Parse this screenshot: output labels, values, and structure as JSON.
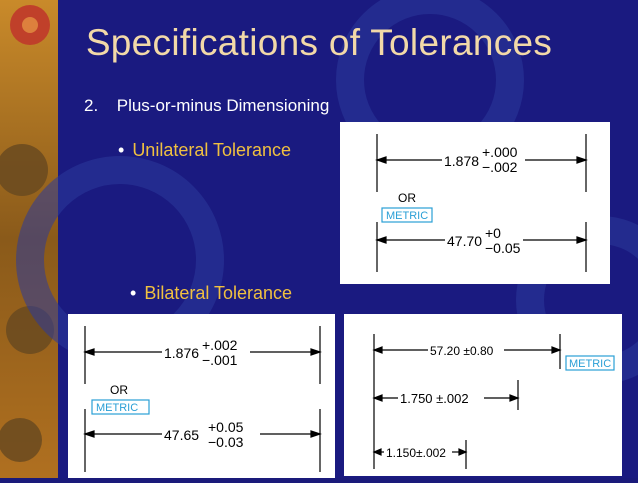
{
  "slide": {
    "title": "Specifications of Tolerances",
    "item_number": "2.",
    "item_text": "Plus-or-minus Dimensioning",
    "bullet1": "Unilateral Tolerance",
    "bullet2": "Bilateral Tolerance"
  },
  "panel_unilateral": {
    "dim1_base": "1.878",
    "dim1_upper": "+.000",
    "dim1_lower": "−.002",
    "or": "OR",
    "metric": "METRIC",
    "dim2_base": "47.70",
    "dim2_upper": "+0",
    "dim2_lower": "−0.05"
  },
  "panel_bilateral": {
    "dim1_base": "1.876",
    "dim1_upper": "+.002",
    "dim1_lower": "−.001",
    "or": "OR",
    "metric": "METRIC",
    "dim2_base": "47.65",
    "dim2_upper": "+0.05",
    "dim2_lower": "−0.03"
  },
  "panel_equal": {
    "dim1": "57.20 ±0.80",
    "metric": "METRIC",
    "dim2": "1.750 ±.002",
    "dim3": "1.150±.002"
  },
  "colors": {
    "background": "#1a1a7a",
    "title": "#f2d9a8",
    "bullet": "#f0c040",
    "metric_box": "#2a9fd6"
  }
}
